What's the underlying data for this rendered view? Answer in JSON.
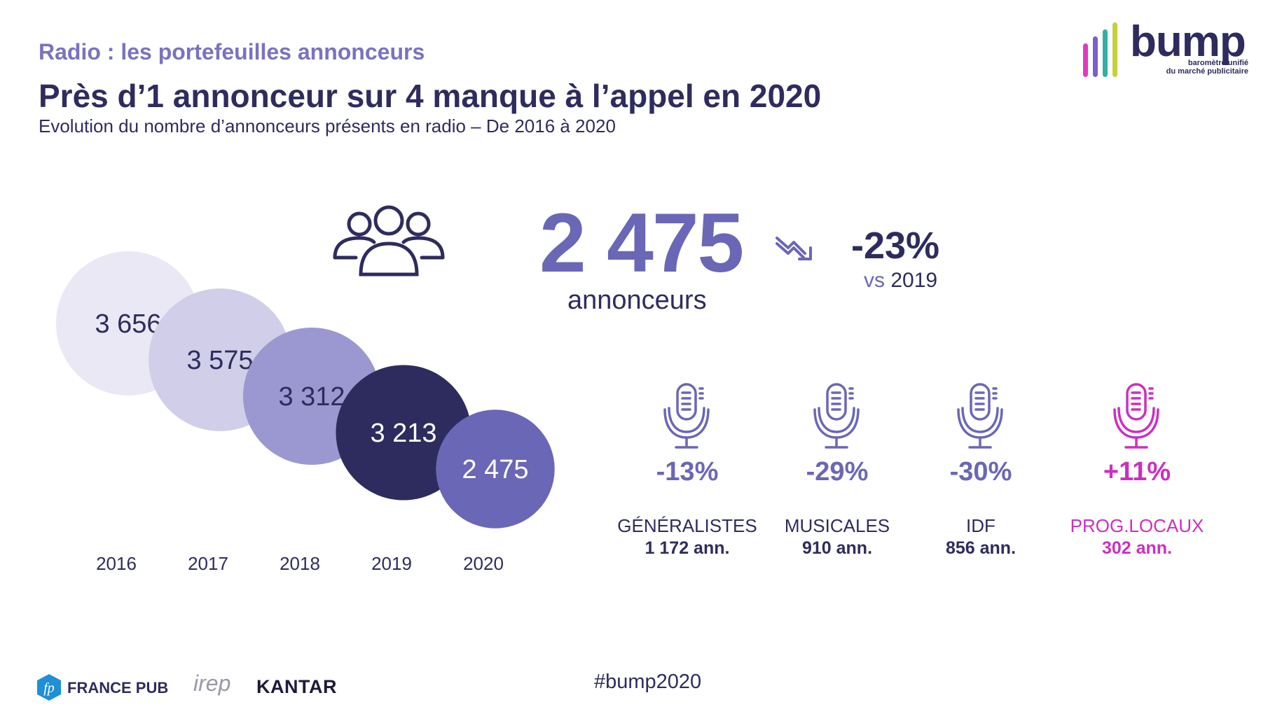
{
  "header": {
    "kicker": "Radio : les portefeuilles annonceurs",
    "title": "Près d’1 annonceur sur 4 manque à l’appel en 2020",
    "subtitle": "Evolution du nombre d’annonceurs présents en radio – De 2016 à 2020"
  },
  "logo": {
    "word": "bump",
    "tagline_1": "baromètre unifié",
    "tagline_2": "du marché publicitaire",
    "bar_colors": [
      "#e23bbd",
      "#7b5fd0",
      "#33b0a5",
      "#c2d23a"
    ]
  },
  "headline": {
    "value": "2 475",
    "unit": "annonceurs",
    "variation": "-23%",
    "vs_label": "vs",
    "vs_year": "2019",
    "icon": "people-group-icon",
    "trend_icon": "trend-down-icon"
  },
  "chart_data": {
    "type": "bubble",
    "categories": [
      "2016",
      "2017",
      "2018",
      "2019",
      "2020"
    ],
    "values": [
      3656,
      3575,
      3312,
      3213,
      2475
    ],
    "value_labels": [
      "3 656",
      "3 575",
      "3 312",
      "3 213",
      "2 475"
    ],
    "colors": [
      "#e9e8f4",
      "#d0cee8",
      "#9b98d1",
      "#2e2c5e",
      "#6a67b6"
    ],
    "label_colors": [
      "#2e2c5e",
      "#2e2c5e",
      "#2e2c5e",
      "#ffffff",
      "#ffffff"
    ]
  },
  "categories": [
    {
      "pct": "-13%",
      "name": "GÉNÉRALISTES",
      "ann": "1 172 ann.",
      "color": "#6a67b6",
      "name_color": "#2e2c5e",
      "ann_color": "#2e2c5e",
      "icon": "microphone-icon"
    },
    {
      "pct": "-29%",
      "name": "MUSICALES",
      "ann": "910 ann.",
      "color": "#6a67b6",
      "name_color": "#2e2c5e",
      "ann_color": "#2e2c5e",
      "icon": "microphone-icon"
    },
    {
      "pct": "-30%",
      "name": "IDF",
      "ann": "856 ann.",
      "color": "#6a67b6",
      "name_color": "#2e2c5e",
      "ann_color": "#2e2c5e",
      "icon": "microphone-icon"
    },
    {
      "pct": "+11%",
      "name": "PROG.LOCAUX",
      "ann": "302 ann.",
      "color": "#cc2fc0",
      "name_color": "#cc2fc0",
      "ann_color": "#cc2fc0",
      "icon": "microphone-icon"
    }
  ],
  "footer": {
    "hashtag": "#bump2020",
    "france_pub": "FRANCE PUB",
    "irep": "irep",
    "kantar": "KANTAR"
  }
}
